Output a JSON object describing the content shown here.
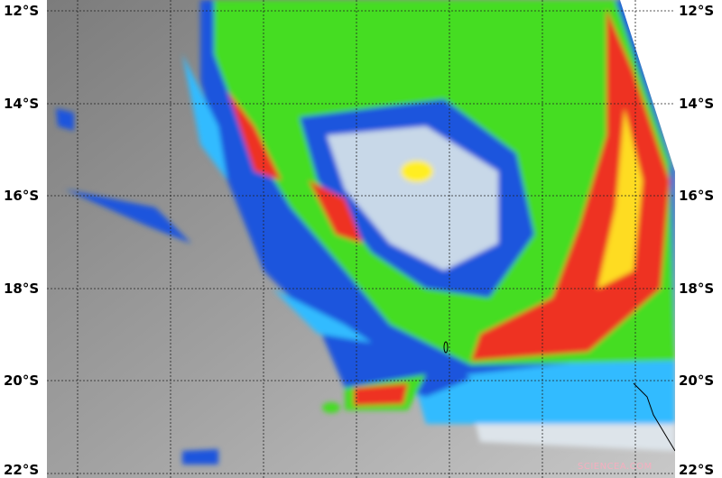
{
  "latitude_labels": [
    "12°S",
    "14°S",
    "16°S",
    "18°S",
    "20°S",
    "22°S"
  ],
  "watermark": "SCIENCEA.COM",
  "colors": {
    "cold_cloud_green": "#44dd22",
    "blue": "#1a55dd",
    "cyan": "#33bbff",
    "red": "#ee3322",
    "yellow": "#ffee22",
    "background_gray": "#8a8a8a"
  }
}
